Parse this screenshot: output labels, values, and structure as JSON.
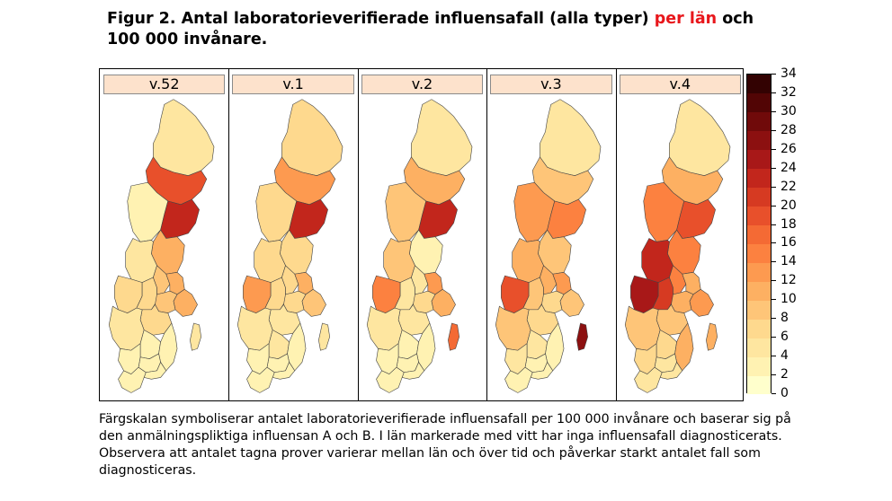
{
  "figure": {
    "title_part1": "Figur 2. Antal laboratorieverifierade influensafall (alla typer) ",
    "title_highlight": "per län",
    "title_part2": " och 100 000 invånare.",
    "caption": "Färgskalan symboliserar antalet laboratorieverifierade influensafall per 100 000 invånare och baserar sig på den anmälningspliktiga influensan A och B. I län markerade med vitt har inga influensafall diagnosticerats. Observera att antalet tagna prover varierar mellan län och över tid och påverkar starkt antalet fall som diagnosticeras."
  },
  "colors": {
    "title_highlight": "#e8161b",
    "panel_header_bg": "#fde2cc"
  },
  "legend": {
    "ticks": [
      "0",
      "2",
      "4",
      "6",
      "8",
      "10",
      "12",
      "14",
      "16",
      "18",
      "20",
      "22",
      "24",
      "26",
      "28",
      "30",
      "32",
      "34"
    ],
    "max": 34,
    "colors": [
      "#ffffcc",
      "#fff2b2",
      "#fee6a0",
      "#fed98e",
      "#fec578",
      "#fdb062",
      "#fd9a50",
      "#fc8140",
      "#f46a34",
      "#e8502b",
      "#d63a22",
      "#c2261c",
      "#a81818",
      "#8c1010",
      "#700a0a",
      "#520505",
      "#330202"
    ]
  },
  "panels": [
    {
      "week": "v.52",
      "regions": {
        "norrbotten": 5,
        "vasterbotten": 19,
        "jamtland": 2,
        "vasternorrland": 22,
        "gavleborg": 10,
        "dalarna": 5,
        "varmland": 6,
        "orebro": 7,
        "vastmanland": 9,
        "uppsala": 11,
        "stockholm": 10,
        "sodermanland": 8,
        "ostergotland": 6,
        "vastra_gotaland": 4,
        "jonkoping": 3,
        "kronoberg": 2,
        "kalmar": 3,
        "gotland": 5,
        "halland": 2,
        "blekinge": 2,
        "skane": 2
      }
    },
    {
      "week": "v.1",
      "regions": {
        "norrbotten": 7,
        "vasterbotten": 13,
        "jamtland": 6,
        "vasternorrland": 22,
        "gavleborg": 7,
        "dalarna": 7,
        "varmland": 13,
        "orebro": 6,
        "vastmanland": 6,
        "uppsala": 10,
        "stockholm": 9,
        "sodermanland": 7,
        "ostergotland": 5,
        "vastra_gotaland": 5,
        "jonkoping": 4,
        "kronoberg": 3,
        "kalmar": 3,
        "gotland": 4,
        "halland": 3,
        "blekinge": 2,
        "skane": 2
      }
    },
    {
      "week": "v.2",
      "regions": {
        "norrbotten": 5,
        "vasterbotten": 10,
        "jamtland": 9,
        "vasternorrland": 22,
        "gavleborg": 3,
        "dalarna": 9,
        "varmland": 14,
        "orebro": 5,
        "vastmanland": 4,
        "uppsala": 12,
        "stockholm": 11,
        "sodermanland": 6,
        "ostergotland": 4,
        "vastra_gotaland": 5,
        "jonkoping": 3,
        "kronoberg": 2,
        "kalmar": 2,
        "gotland": 16,
        "halland": 3,
        "blekinge": 2,
        "skane": 2
      }
    },
    {
      "week": "v.3",
      "regions": {
        "norrbotten": 5,
        "vasterbotten": 9,
        "jamtland": 12,
        "vasternorrland": 14,
        "gavleborg": 8,
        "dalarna": 11,
        "varmland": 19,
        "orebro": 9,
        "vastmanland": 10,
        "uppsala": 12,
        "stockholm": 9,
        "sodermanland": 7,
        "ostergotland": 6,
        "vastra_gotaland": 8,
        "jonkoping": 4,
        "kronoberg": 3,
        "kalmar": 3,
        "gotland": 26,
        "halland": 4,
        "blekinge": 3,
        "skane": 3
      }
    },
    {
      "week": "v.4",
      "regions": {
        "norrbotten": 5,
        "vasterbotten": 10,
        "jamtland": 14,
        "vasternorrland": 19,
        "gavleborg": 14,
        "dalarna": 22,
        "varmland": 25,
        "orebro": 20,
        "vastmanland": 14,
        "uppsala": 11,
        "stockholm": 13,
        "sodermanland": 11,
        "ostergotland": 9,
        "vastra_gotaland": 9,
        "jonkoping": 7,
        "kronoberg": 5,
        "kalmar": 11,
        "gotland": 11,
        "halland": 7,
        "blekinge": 5,
        "skane": 4
      }
    }
  ]
}
